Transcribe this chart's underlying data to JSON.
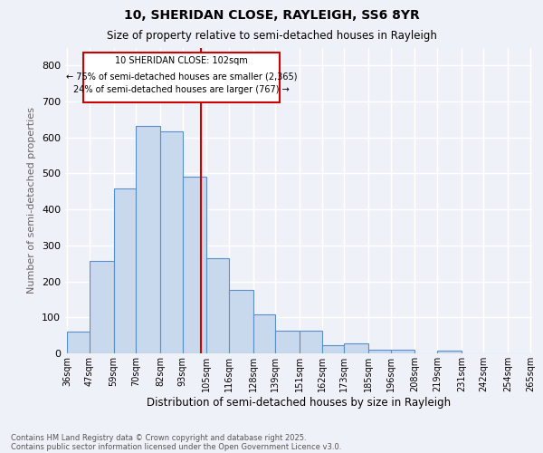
{
  "title1": "10, SHERIDAN CLOSE, RAYLEIGH, SS6 8YR",
  "title2": "Size of property relative to semi-detached houses in Rayleigh",
  "xlabel": "Distribution of semi-detached houses by size in Rayleigh",
  "ylabel": "Number of semi-detached properties",
  "bar_edges": [
    36,
    47,
    59,
    70,
    82,
    93,
    105,
    116,
    128,
    139,
    151,
    162,
    173,
    185,
    196,
    208,
    219,
    231,
    242,
    254,
    265
  ],
  "bar_heights": [
    60,
    258,
    458,
    632,
    618,
    491,
    265,
    176,
    108,
    62,
    62,
    22,
    27,
    10,
    9,
    0,
    8,
    0,
    0,
    0
  ],
  "bar_color": "#c9d9ed",
  "bar_edgecolor": "#5b8fc9",
  "vline_x": 102,
  "vline_color": "#cc0000",
  "annotation_title": "10 SHERIDAN CLOSE: 102sqm",
  "annotation_line1": "← 75% of semi-detached houses are smaller (2,365)",
  "annotation_line2": "24% of semi-detached houses are larger (767) →",
  "annotation_box_color": "#cc0000",
  "footer1": "Contains HM Land Registry data © Crown copyright and database right 2025.",
  "footer2": "Contains public sector information licensed under the Open Government Licence v3.0.",
  "ylim": [
    0,
    850
  ],
  "yticks": [
    0,
    100,
    200,
    300,
    400,
    500,
    600,
    700,
    800
  ],
  "bg_color": "#eef2f8",
  "grid_color": "#ffffff"
}
